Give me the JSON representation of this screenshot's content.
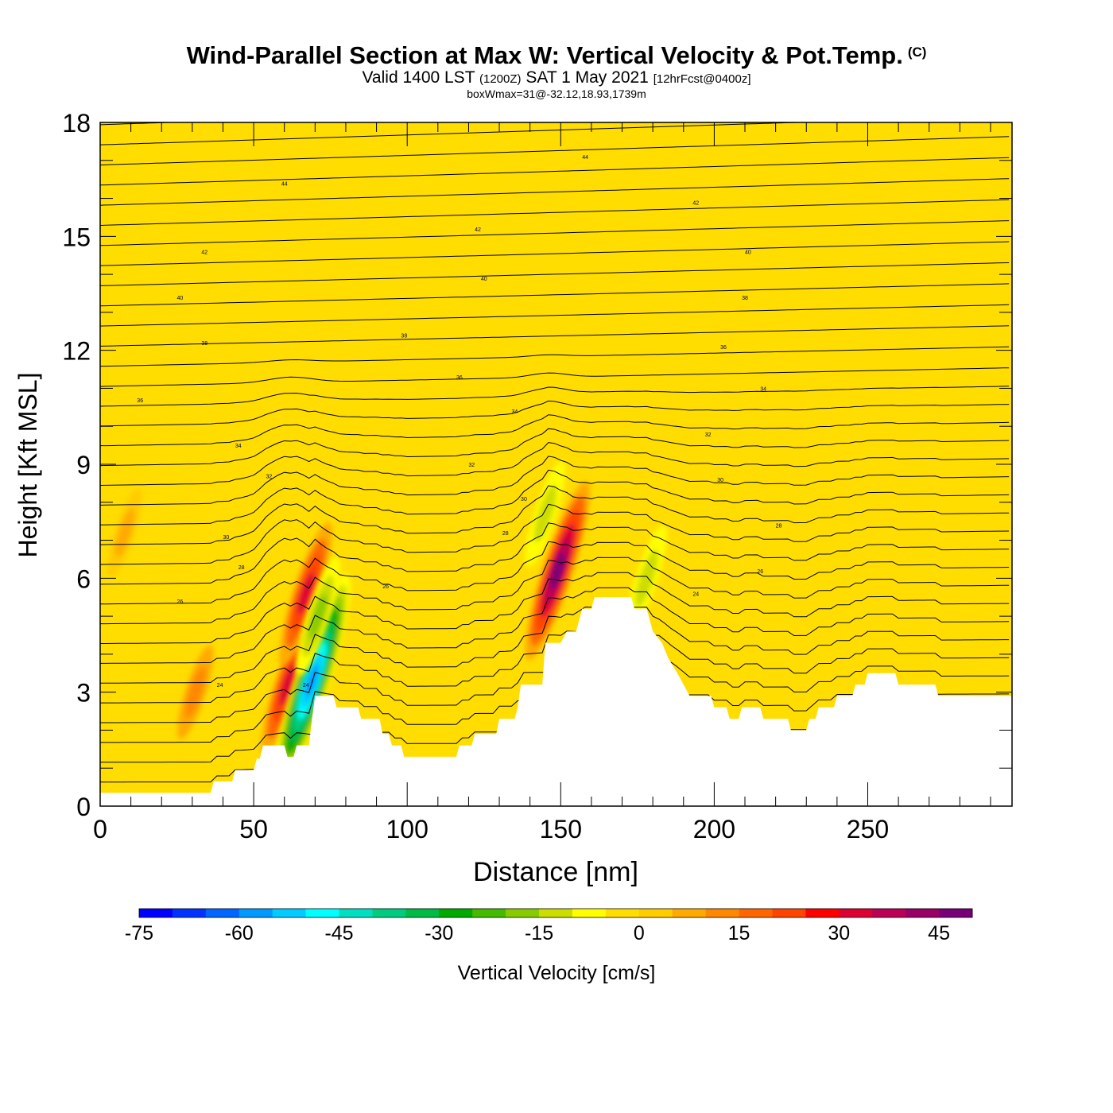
{
  "header": {
    "title": "Wind-Parallel Section at Max W: Vertical Velocity & Pot.Temp.",
    "copyright": "(C)",
    "valid_prefix": "Valid 1400 LST",
    "valid_utc": "(1200Z)",
    "valid_date": "SAT 1 May 2021",
    "forecast": "[12hrFcst@0400z]",
    "box_info": "boxWmax=31@-32.12,18.93,1739m"
  },
  "chart_data": {
    "type": "heatmap",
    "xlabel": "Distance [nm]",
    "ylabel": "Height [Kft MSL]",
    "xlim": [
      0,
      297
    ],
    "ylim": [
      0,
      18
    ],
    "x_ticks": [
      0,
      50,
      100,
      150,
      200,
      250
    ],
    "y_ticks": [
      0,
      3,
      6,
      9,
      12,
      15,
      18
    ],
    "background_value_cm_s": 0,
    "colorbar": {
      "label": "Vertical Velocity [cm/s]",
      "min": -75,
      "max": 50,
      "step": 5,
      "tick_labels": [
        -75,
        -60,
        -45,
        -30,
        -15,
        0,
        15,
        30,
        45
      ],
      "colors": [
        "#0000ff",
        "#0033ff",
        "#0066ff",
        "#0099ff",
        "#00ccff",
        "#00ffff",
        "#00e0c0",
        "#00cc80",
        "#00bb44",
        "#00aa00",
        "#44bb00",
        "#88cc00",
        "#ccdd00",
        "#ffff00",
        "#ffdd00",
        "#ffcc00",
        "#ffaa00",
        "#ff8800",
        "#ff6600",
        "#ff4400",
        "#ff0000",
        "#dd0033",
        "#bb0055",
        "#990066",
        "#770077"
      ]
    },
    "terrain_kft": [
      [
        0,
        0.35
      ],
      [
        36,
        0.35
      ],
      [
        37,
        0.65
      ],
      [
        43,
        0.65
      ],
      [
        44,
        0.95
      ],
      [
        50,
        0.95
      ],
      [
        51,
        1.25
      ],
      [
        52,
        1.25
      ],
      [
        53,
        1.6
      ],
      [
        60,
        1.6
      ],
      [
        61,
        1.3
      ],
      [
        63,
        1.3
      ],
      [
        64,
        1.6
      ],
      [
        68,
        1.6
      ],
      [
        69,
        2.3
      ],
      [
        70,
        2.9
      ],
      [
        76,
        2.9
      ],
      [
        77,
        2.6
      ],
      [
        84,
        2.6
      ],
      [
        85,
        2.3
      ],
      [
        91,
        2.3
      ],
      [
        92,
        1.9
      ],
      [
        94,
        1.9
      ],
      [
        95,
        1.6
      ],
      [
        98,
        1.6
      ],
      [
        99,
        1.3
      ],
      [
        116,
        1.3
      ],
      [
        117,
        1.6
      ],
      [
        121,
        1.6
      ],
      [
        122,
        1.9
      ],
      [
        129,
        1.9
      ],
      [
        130,
        2.3
      ],
      [
        135,
        2.3
      ],
      [
        136,
        2.6
      ],
      [
        137,
        3.2
      ],
      [
        144,
        3.2
      ],
      [
        145,
        4.3
      ],
      [
        150,
        4.3
      ],
      [
        152,
        4.6
      ],
      [
        155,
        4.6
      ],
      [
        157,
        5.2
      ],
      [
        160,
        5.2
      ],
      [
        161,
        5.5
      ],
      [
        173,
        5.5
      ],
      [
        174,
        5.2
      ],
      [
        178,
        5.2
      ],
      [
        179,
        4.9
      ],
      [
        180,
        4.6
      ],
      [
        183,
        4.3
      ],
      [
        185,
        3.9
      ],
      [
        188,
        3.5
      ],
      [
        190,
        3.2
      ],
      [
        192,
        2.9
      ],
      [
        199,
        2.9
      ],
      [
        200,
        2.6
      ],
      [
        204,
        2.6
      ],
      [
        205,
        2.3
      ],
      [
        208,
        2.3
      ],
      [
        209,
        2.6
      ],
      [
        215,
        2.6
      ],
      [
        216,
        2.3
      ],
      [
        224,
        2.3
      ],
      [
        225,
        2.0
      ],
      [
        230,
        2.0
      ],
      [
        231,
        2.3
      ],
      [
        233,
        2.3
      ],
      [
        234,
        2.6
      ],
      [
        239,
        2.6
      ],
      [
        240,
        2.9
      ],
      [
        245,
        2.9
      ],
      [
        246,
        3.2
      ],
      [
        249,
        3.2
      ],
      [
        250,
        3.5
      ],
      [
        259,
        3.5
      ],
      [
        260,
        3.2
      ],
      [
        272,
        3.2
      ],
      [
        273,
        2.9
      ],
      [
        297,
        2.9
      ]
    ],
    "w_features": [
      {
        "x": 61,
        "y": 3.2,
        "w_cm_s": 30
      },
      {
        "x": 67,
        "y": 5.6,
        "w_cm_s": 30
      },
      {
        "x": 69,
        "y": 3.3,
        "w_cm_s": -60
      },
      {
        "x": 71,
        "y": 5.0,
        "w_cm_s": -20
      },
      {
        "x": 149,
        "y": 6.2,
        "w_cm_s": 45
      },
      {
        "x": 145,
        "y": 7.7,
        "w_cm_s": -15
      },
      {
        "x": 178,
        "y": 6.0,
        "w_cm_s": -15
      },
      {
        "x": 31,
        "y": 3.0,
        "w_cm_s": 10
      },
      {
        "x": 8,
        "y": 7.2,
        "w_cm_s": 8
      }
    ],
    "theta_labels": [
      {
        "text": "44",
        "x": 158,
        "y": 17.1
      },
      {
        "text": "44",
        "x": 60,
        "y": 16.4
      },
      {
        "text": "42",
        "x": 194,
        "y": 15.9
      },
      {
        "text": "42",
        "x": 123,
        "y": 15.2
      },
      {
        "text": "42",
        "x": 34,
        "y": 14.6
      },
      {
        "text": "40",
        "x": 211,
        "y": 14.6
      },
      {
        "text": "40",
        "x": 125,
        "y": 13.9
      },
      {
        "text": "40",
        "x": 26,
        "y": 13.4
      },
      {
        "text": "38",
        "x": 210,
        "y": 13.4
      },
      {
        "text": "38",
        "x": 99,
        "y": 12.4
      },
      {
        "text": "38",
        "x": 34,
        "y": 12.2
      },
      {
        "text": "36",
        "x": 203,
        "y": 12.1
      },
      {
        "text": "36",
        "x": 117,
        "y": 11.3
      },
      {
        "text": "34",
        "x": 216,
        "y": 11.0
      },
      {
        "text": "36",
        "x": 13,
        "y": 10.7
      },
      {
        "text": "34",
        "x": 135,
        "y": 10.4
      },
      {
        "text": "32",
        "x": 198,
        "y": 9.8
      },
      {
        "text": "34",
        "x": 45,
        "y": 9.5
      },
      {
        "text": "32",
        "x": 121,
        "y": 9.0
      },
      {
        "text": "32",
        "x": 55,
        "y": 8.7
      },
      {
        "text": "30",
        "x": 202,
        "y": 8.6
      },
      {
        "text": "30",
        "x": 138,
        "y": 8.1
      },
      {
        "text": "28",
        "x": 221,
        "y": 7.4
      },
      {
        "text": "30",
        "x": 41,
        "y": 7.1
      },
      {
        "text": "28",
        "x": 132,
        "y": 7.2
      },
      {
        "text": "28",
        "x": 46,
        "y": 6.3
      },
      {
        "text": "26",
        "x": 215,
        "y": 6.2
      },
      {
        "text": "26",
        "x": 93,
        "y": 5.8
      },
      {
        "text": "24",
        "x": 194,
        "y": 5.6
      },
      {
        "text": "26",
        "x": 26,
        "y": 5.4
      },
      {
        "text": "24",
        "x": 39,
        "y": 3.2
      },
      {
        "text": "24",
        "x": 67,
        "y": 3.2
      }
    ]
  }
}
